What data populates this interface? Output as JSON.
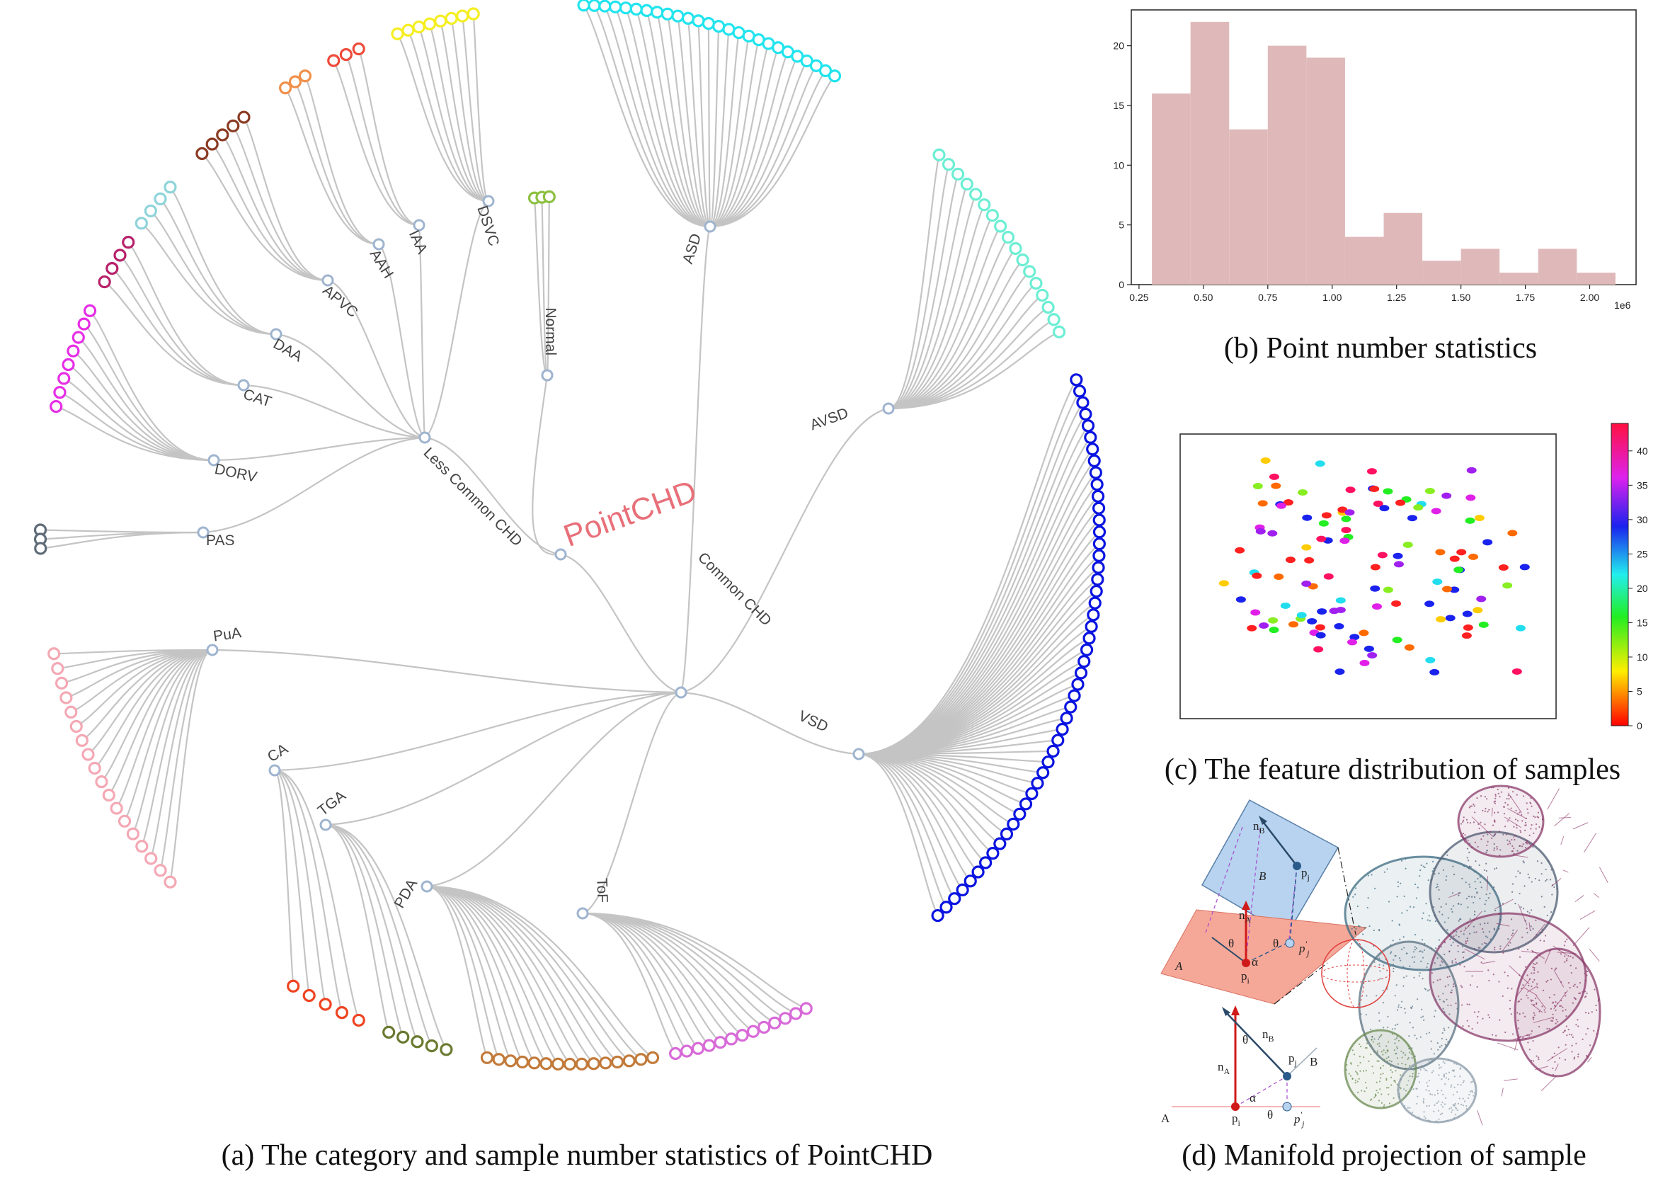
{
  "captions": {
    "a": "(a) The category and sample number statistics of PointCHD",
    "b": "(b) Point number statistics",
    "c": "(c) The feature distribution of samples",
    "d": "(d) Manifold projection of sample"
  },
  "tree": {
    "root": "PointCHD",
    "root_color": "#e8707a",
    "groups": [
      {
        "label": "Less Common CHD"
      },
      {
        "label": "Common CHD"
      },
      {
        "label": "Normal"
      }
    ],
    "leaves": [
      {
        "label": "PAS",
        "count": 3,
        "color": "#5f6b78"
      },
      {
        "label": "DORV",
        "count": 8,
        "color": "#e62ee6"
      },
      {
        "label": "CAT",
        "count": 4,
        "color": "#b8206a"
      },
      {
        "label": "DAA",
        "count": 4,
        "color": "#8ed4da"
      },
      {
        "label": "APVC",
        "count": 5,
        "color": "#8a3a22"
      },
      {
        "label": "AAH",
        "count": 3,
        "color": "#f0904a"
      },
      {
        "label": "IAA",
        "count": 3,
        "color": "#ee4a3a"
      },
      {
        "label": "DSVC",
        "count": 8,
        "color": "#f5ee20"
      },
      {
        "label": "Normal",
        "count": 3,
        "color": "#8cc040"
      },
      {
        "label": "ASD",
        "count": 26,
        "color": "#22e4ee"
      },
      {
        "label": "AVSD",
        "count": 17,
        "color": "#6ceed4"
      },
      {
        "label": "VSD",
        "count": 50,
        "color": "#0a14e0"
      },
      {
        "label": "ToF",
        "count": 13,
        "color": "#d86ad8"
      },
      {
        "label": "PDA",
        "count": 15,
        "color": "#c27a3a"
      },
      {
        "label": "TGA",
        "count": 5,
        "color": "#6a7a30"
      },
      {
        "label": "CA",
        "count": 5,
        "color": "#ee4422"
      },
      {
        "label": "PuA",
        "count": 18,
        "color": "#f4a8b4"
      }
    ]
  },
  "chart_data": {
    "type": "bar",
    "title": "",
    "xlabel": "",
    "ylabel": "",
    "x_offset_label": "1e6",
    "bin_edges": [
      0.3,
      0.45,
      0.6,
      0.75,
      0.9,
      1.05,
      1.2,
      1.35,
      1.5,
      1.65,
      1.8,
      1.95,
      2.1
    ],
    "values": [
      16,
      22,
      13,
      20,
      19,
      4,
      6,
      2,
      3,
      1,
      3,
      1
    ],
    "xticks": [
      "0.25",
      "0.50",
      "0.75",
      "1.00",
      "1.25",
      "1.50",
      "1.75",
      "2.00"
    ],
    "yticks": [
      "0",
      "5",
      "10",
      "15",
      "20"
    ],
    "xlim": [
      0.22,
      2.18
    ],
    "ylim": [
      0,
      23
    ],
    "bar_color": "#dfb9b9"
  },
  "scatter": {
    "colorbar_ticks": [
      "0",
      "5",
      "10",
      "15",
      "20",
      "25",
      "30",
      "35",
      "40"
    ],
    "colorbar_range": [
      0,
      44
    ]
  },
  "diagram": {
    "n_B": "n",
    "n_B_sub": "B",
    "n_A": "n",
    "n_A_sub": "A",
    "p_j": "p",
    "p_j_sub": "j",
    "p_i": "p",
    "p_i_sub": "i",
    "p_j_prime": "p",
    "p_j_prime_sup": "′",
    "p_j_prime_sub": "j",
    "plane_A": "A",
    "plane_B": "B",
    "theta": "θ",
    "alpha": "α"
  }
}
